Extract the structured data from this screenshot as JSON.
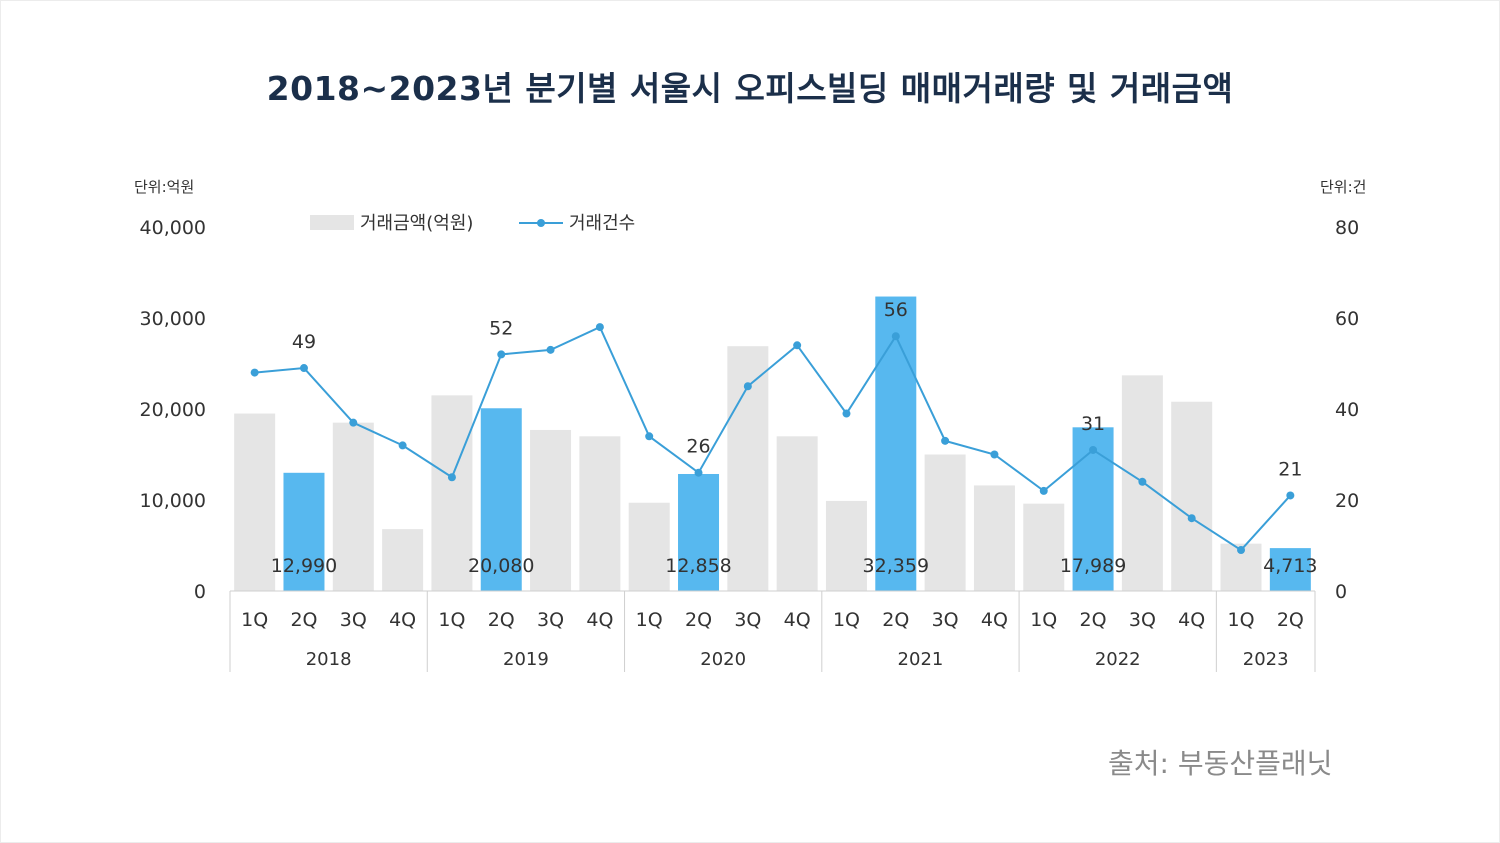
{
  "title": "2018~2023년 분기별 서울시 오피스빌딩 매매거래량 및 거래금액",
  "unit_left": "단위:억원",
  "unit_right": "단위:건",
  "source": "출처: 부동산플래닛",
  "colors": {
    "bar": "#e5e5e5",
    "bar_highlight": "#57b8ef",
    "line": "#3a9fd8",
    "title": "#1b2f4a"
  },
  "chart_data": {
    "type": "bar",
    "title": "2018~2023년 분기별 서울시 오피스빌딩 매매거래량 및 거래금액",
    "categories": [
      "1Q",
      "2Q",
      "3Q",
      "4Q",
      "1Q",
      "2Q",
      "3Q",
      "4Q",
      "1Q",
      "2Q",
      "3Q",
      "4Q",
      "1Q",
      "2Q",
      "3Q",
      "4Q",
      "1Q",
      "2Q",
      "3Q",
      "4Q",
      "1Q",
      "2Q"
    ],
    "years": [
      {
        "label": "2018",
        "count": 4
      },
      {
        "label": "2019",
        "count": 4
      },
      {
        "label": "2020",
        "count": 4
      },
      {
        "label": "2021",
        "count": 4
      },
      {
        "label": "2022",
        "count": 4
      },
      {
        "label": "2023",
        "count": 2
      }
    ],
    "series": [
      {
        "name": "거래금액(억원)",
        "type": "bar",
        "axis": "left",
        "values": [
          19500,
          12990,
          18500,
          6800,
          21500,
          20080,
          17700,
          17000,
          9700,
          12858,
          26900,
          17000,
          9900,
          32359,
          15000,
          11600,
          9600,
          17989,
          23700,
          20800,
          5200,
          4713
        ],
        "highlight": [
          false,
          true,
          false,
          false,
          false,
          true,
          false,
          false,
          false,
          true,
          false,
          false,
          false,
          true,
          false,
          false,
          false,
          true,
          false,
          false,
          false,
          true
        ],
        "labels": [
          "",
          "12,990",
          "",
          "",
          "",
          "20,080",
          "",
          "",
          "",
          "12,858",
          "",
          "",
          "",
          "32,359",
          "",
          "",
          "",
          "17,989",
          "",
          "",
          "",
          "4,713"
        ]
      },
      {
        "name": "거래건수",
        "type": "line",
        "axis": "right",
        "values": [
          48,
          49,
          37,
          32,
          25,
          52,
          53,
          58,
          34,
          26,
          45,
          54,
          39,
          56,
          33,
          30,
          22,
          31,
          24,
          16,
          9,
          21
        ],
        "labels": [
          "",
          "49",
          "",
          "",
          "",
          "52",
          "",
          "",
          "",
          "26",
          "",
          "",
          "",
          "56",
          "",
          "",
          "",
          "31",
          "",
          "",
          "",
          "21"
        ]
      }
    ],
    "y_left": {
      "min": 0,
      "max": 40000,
      "ticks": [
        "0",
        "10,000",
        "20,000",
        "30,000",
        "40,000"
      ]
    },
    "y_right": {
      "min": 0,
      "max": 80,
      "ticks": [
        "0",
        "20",
        "40",
        "60",
        "80"
      ]
    },
    "legend_position": "top-left",
    "grid": false
  }
}
